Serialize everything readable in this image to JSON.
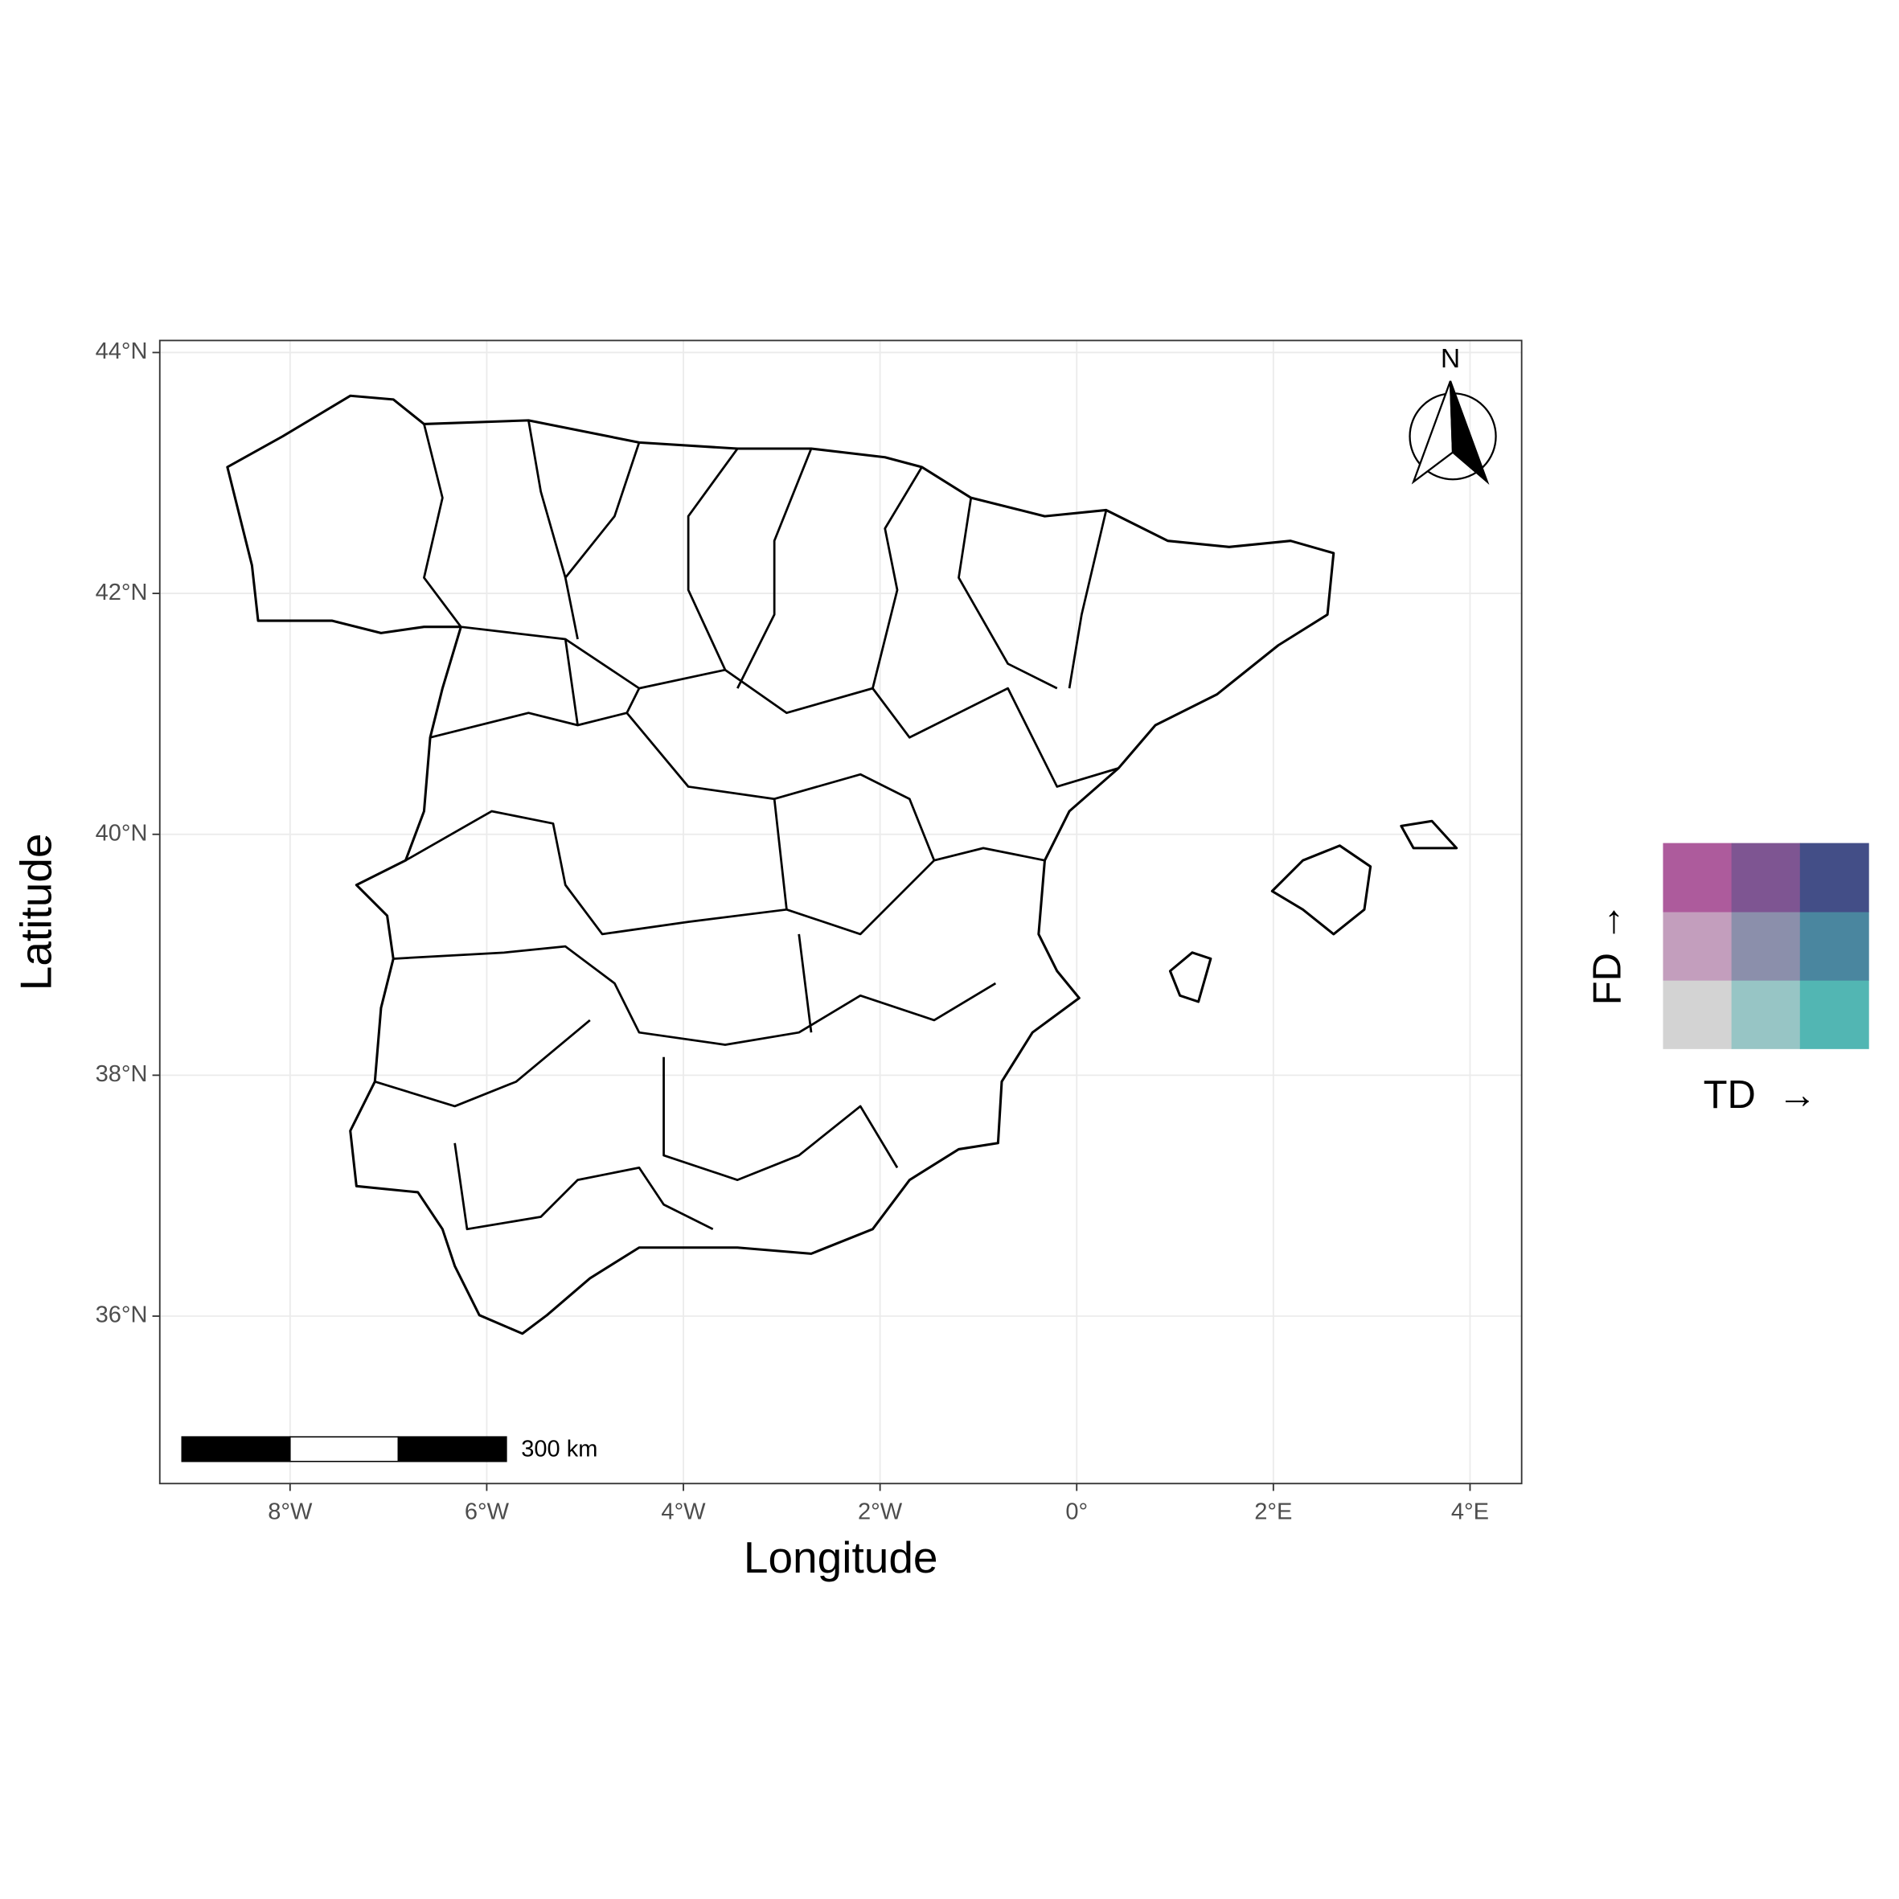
{
  "chart_data": {
    "type": "map",
    "xlabel": "Longitude",
    "ylabel": "Latitude",
    "xlim": [
      -9.325,
      4.525
    ],
    "ylim": [
      34.61,
      44.1
    ],
    "xticks": [
      {
        "value": -8,
        "label": "8°W"
      },
      {
        "value": -6,
        "label": "6°W"
      },
      {
        "value": -4,
        "label": "4°W"
      },
      {
        "value": -2,
        "label": "2°W"
      },
      {
        "value": 0,
        "label": "0°"
      },
      {
        "value": 2,
        "label": "2°E"
      },
      {
        "value": 4,
        "label": "4°E"
      }
    ],
    "yticks": [
      {
        "value": 36,
        "label": "36°N"
      },
      {
        "value": 38,
        "label": "38°N"
      },
      {
        "value": 40,
        "label": "40°N"
      },
      {
        "value": 42,
        "label": "42°N"
      },
      {
        "value": 44,
        "label": "44°N"
      }
    ],
    "grid": true,
    "legend": {
      "x_label": "TD  →",
      "y_label": "FD →",
      "colors": [
        [
          "#d3d3d3",
          "#97c5c5",
          "#52b6b3"
        ],
        [
          "#c39ebd",
          "#8b8fab",
          "#4a869f"
        ],
        [
          "#ad5b9c",
          "#7e5592",
          "#434e87"
        ]
      ]
    },
    "scale_bar": "300 km",
    "north_label": "N"
  }
}
